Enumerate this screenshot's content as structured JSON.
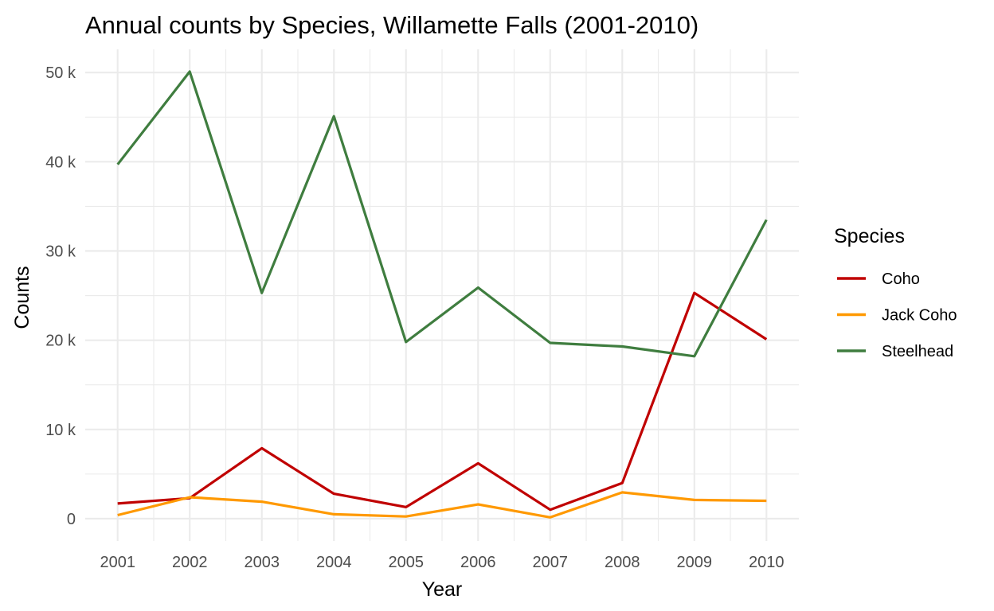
{
  "chart_data": {
    "type": "line",
    "title": "Annual counts by Species, Willamette Falls (2001-2010)",
    "xlabel": "Year",
    "ylabel": "Counts",
    "x": [
      2001,
      2002,
      2003,
      2004,
      2005,
      2006,
      2007,
      2008,
      2009,
      2010
    ],
    "x_tick_labels": [
      "2001",
      "2002",
      "2003",
      "2004",
      "2005",
      "2006",
      "2007",
      "2008",
      "2009",
      "2010"
    ],
    "xlim": [
      2000.55,
      2010.45
    ],
    "y_ticks": [
      0,
      10000,
      20000,
      30000,
      40000,
      50000
    ],
    "y_tick_labels": [
      "0",
      "10 k",
      "20 k",
      "30 k",
      "40 k",
      "50 k"
    ],
    "ylim": [
      -2500,
      52600
    ],
    "grid": true,
    "legend": {
      "title": "Species",
      "position": "right"
    },
    "series": [
      {
        "name": "Coho",
        "color": "#c00000",
        "values": [
          1700,
          2300,
          7900,
          2800,
          1300,
          6200,
          1000,
          4000,
          25300,
          20100
        ]
      },
      {
        "name": "Jack Coho",
        "color": "#ff9900",
        "values": [
          400,
          2400,
          1900,
          500,
          250,
          1600,
          150,
          2950,
          2100,
          2000
        ]
      },
      {
        "name": "Steelhead",
        "color": "#3f7d3f",
        "values": [
          39700,
          50100,
          25300,
          45100,
          19800,
          25900,
          19700,
          19300,
          18200,
          33500
        ]
      }
    ]
  }
}
